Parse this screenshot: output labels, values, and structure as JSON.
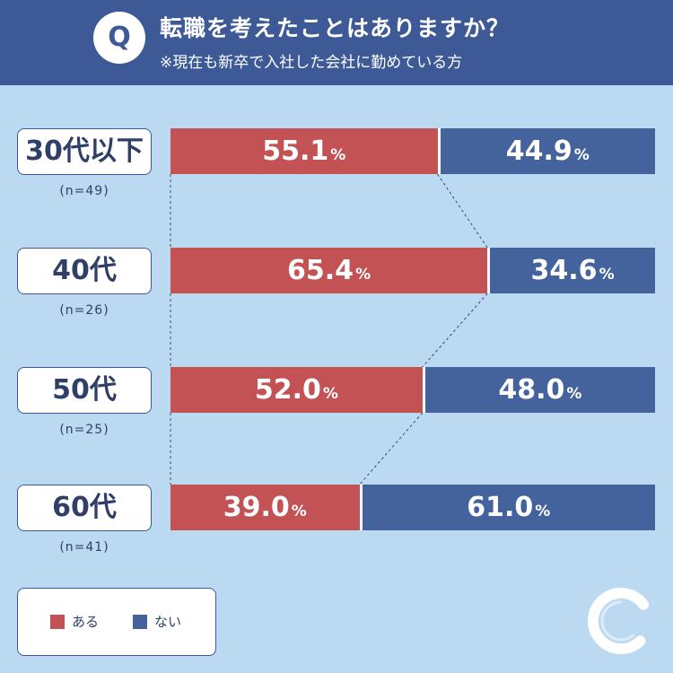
{
  "header": {
    "badge": "Q",
    "title": "転職を考えたことはありますか？",
    "subtitle": "※現在も新卒で入社した会社に勤めている方"
  },
  "colors": {
    "yes": "#c25254",
    "no": "#44629c",
    "header": "#3d5a97",
    "background": "#bcd9f2"
  },
  "legend": {
    "yes_label": "ある",
    "no_label": "ない"
  },
  "logo_icon": "c-logo-icon",
  "chart_data": {
    "type": "bar",
    "stacked": true,
    "orientation": "horizontal",
    "categories": [
      "30代以下",
      "40代",
      "50代",
      "60代"
    ],
    "sample_sizes": [
      "(n=49)",
      "(n=26)",
      "(n=25)",
      "(n=41)"
    ],
    "series": [
      {
        "name": "ある",
        "values": [
          55.1,
          65.4,
          52.0,
          39.0
        ]
      },
      {
        "name": "ない",
        "values": [
          44.9,
          34.6,
          48.0,
          61.0
        ]
      }
    ],
    "value_labels": [
      [
        "55.1",
        "44.9"
      ],
      [
        "65.4",
        "34.6"
      ],
      [
        "52.0",
        "48.0"
      ],
      [
        "39.0",
        "61.0"
      ]
    ],
    "unit": "%",
    "xlim": [
      0,
      100
    ]
  }
}
